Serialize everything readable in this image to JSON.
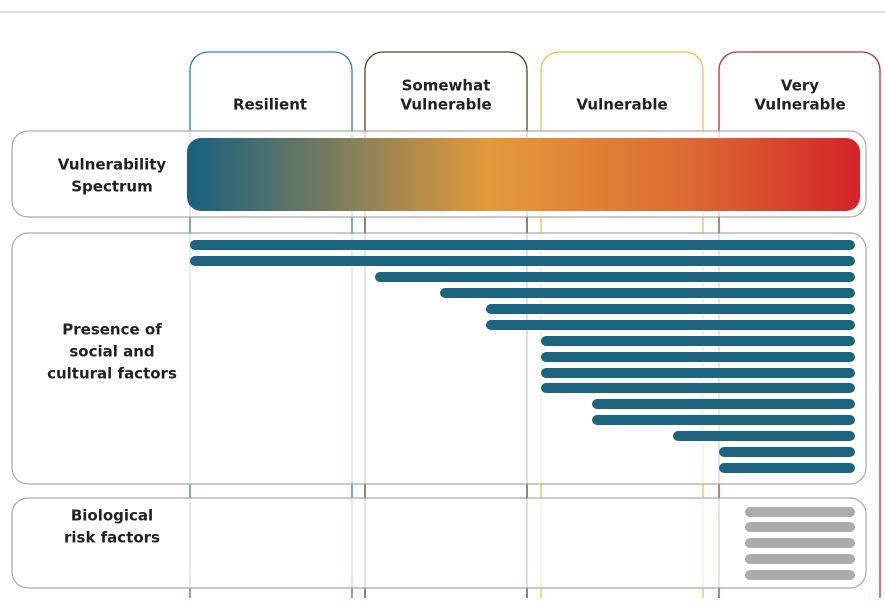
{
  "columns": [
    {
      "lines": [
        "Resilient"
      ]
    },
    {
      "lines": [
        "Somewhat",
        "Vulnerable"
      ]
    },
    {
      "lines": [
        "Vulnerable"
      ]
    },
    {
      "lines": [
        "Very",
        "Vulnerable"
      ]
    }
  ],
  "rows": [
    {
      "lines": [
        "Vulnerability",
        "Spectrum"
      ]
    },
    {
      "lines": [
        "Presence of",
        "social and",
        "cultural factors"
      ]
    },
    {
      "lines": [
        "Biological",
        "risk factors"
      ]
    }
  ]
}
